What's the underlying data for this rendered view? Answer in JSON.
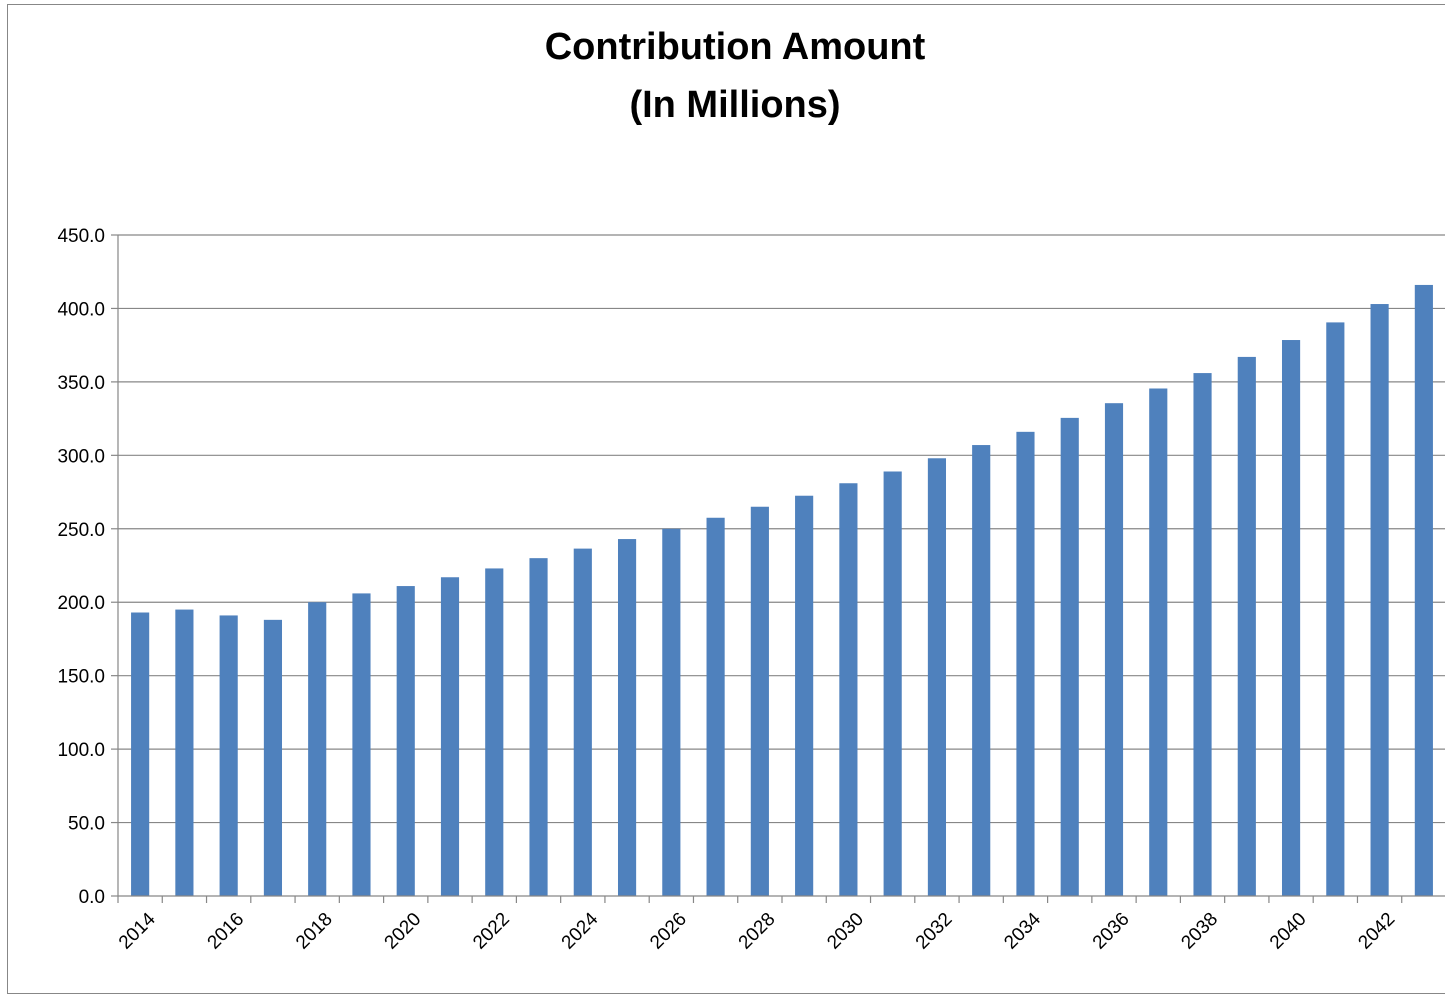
{
  "chart_data": {
    "type": "bar",
    "title_lines": [
      "Contribution Amount",
      "(In Millions)"
    ],
    "xlabel": "",
    "ylabel": "",
    "categories": [
      "2014",
      "2015",
      "2016",
      "2017",
      "2018",
      "2019",
      "2020",
      "2021",
      "2022",
      "2023",
      "2024",
      "2025",
      "2026",
      "2027",
      "2028",
      "2029",
      "2030",
      "2031",
      "2032",
      "2033",
      "2034",
      "2035",
      "2036",
      "2037",
      "2038",
      "2039",
      "2040",
      "2041",
      "2042",
      "2043"
    ],
    "x_tick_labels": [
      "2014",
      "2016",
      "2018",
      "2020",
      "2022",
      "2024",
      "2026",
      "2028",
      "2030",
      "2032",
      "2034",
      "2036",
      "2038",
      "2040",
      "2042"
    ],
    "values": [
      193.0,
      195.0,
      191.0,
      188.0,
      200.0,
      206.0,
      211.0,
      217.0,
      223.0,
      230.0,
      236.5,
      243.0,
      250.0,
      257.5,
      265.0,
      272.5,
      281.0,
      289.0,
      298.0,
      307.0,
      316.0,
      325.5,
      335.5,
      345.5,
      356.0,
      367.0,
      378.5,
      390.5,
      403.0,
      416.0
    ],
    "y_tick_labels": [
      "0.0",
      "50.0",
      "100.0",
      "150.0",
      "200.0",
      "250.0",
      "300.0",
      "350.0",
      "400.0",
      "450.0"
    ],
    "ylim": [
      0,
      450
    ],
    "y_step": 50,
    "grid": "horizontal",
    "legend": "none",
    "colors": {
      "bar": "#4f81bd",
      "grid": "#878787",
      "axis": "#878787",
      "frame": "#878787"
    }
  }
}
